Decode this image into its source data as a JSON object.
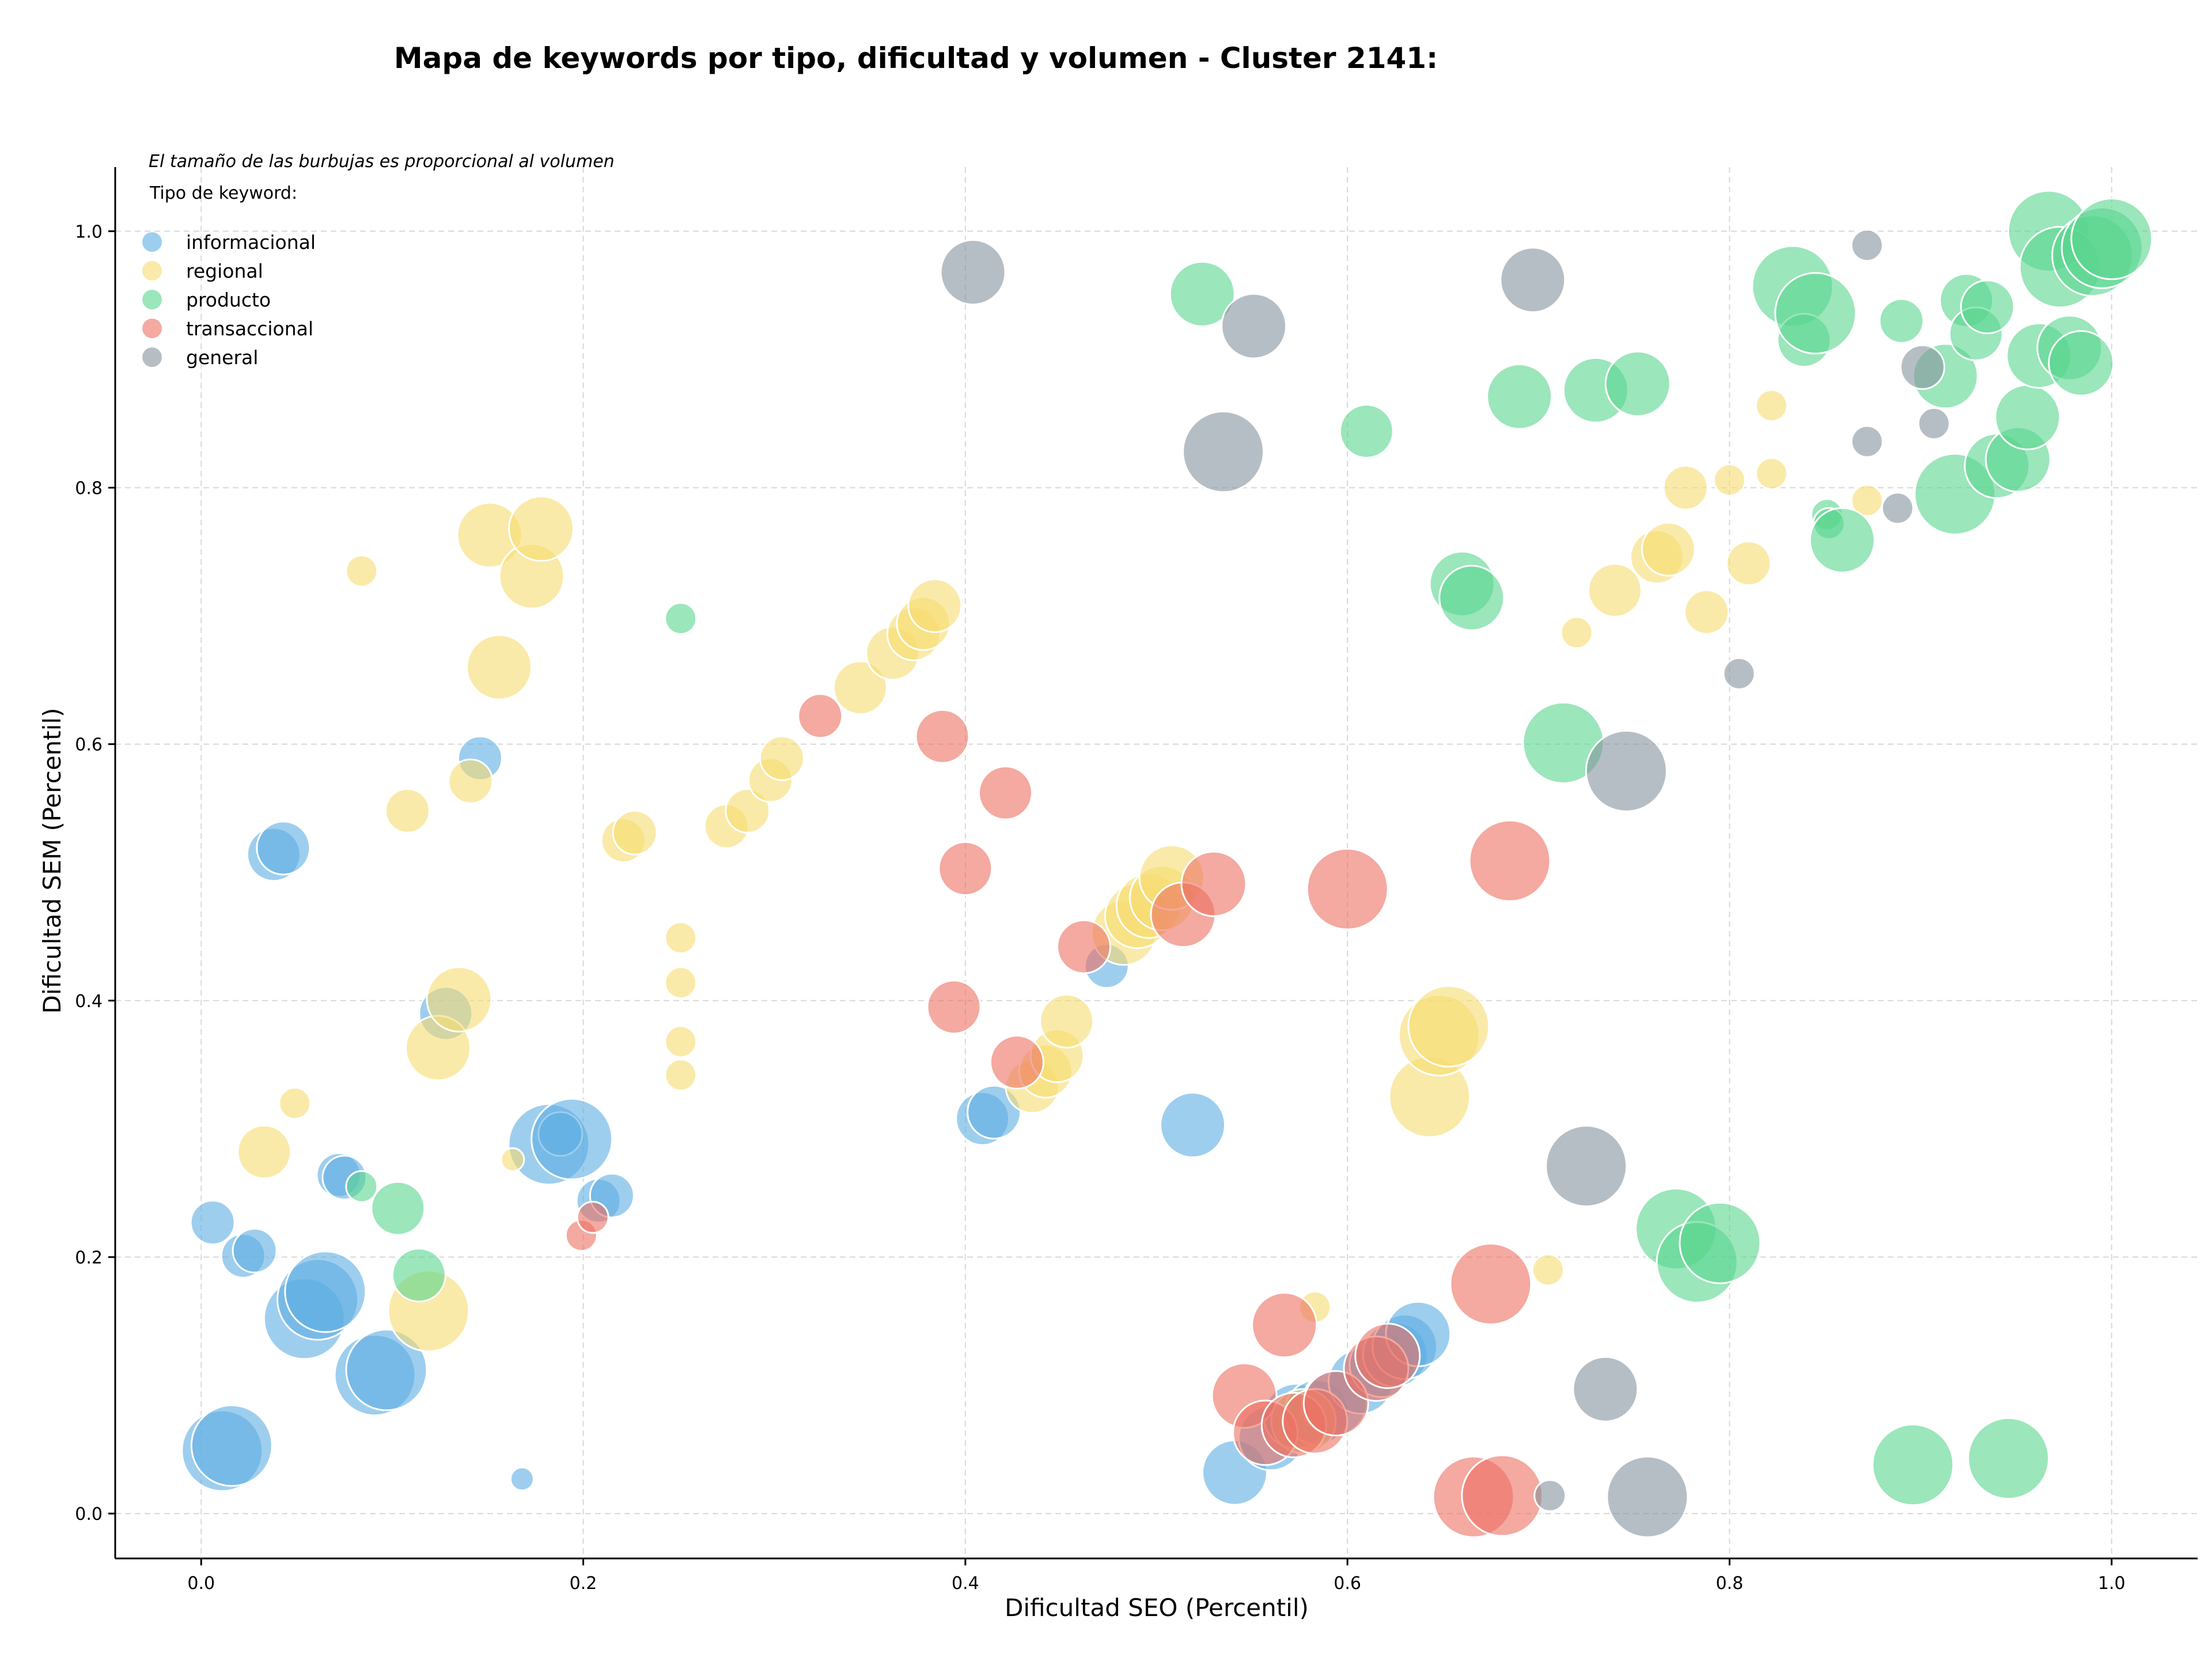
{
  "chart_data": {
    "type": "scatter",
    "title": "Mapa de keywords por tipo, dificultad y volumen - Cluster 2141:",
    "xlabel": "Dificultad SEO (Percentil)",
    "ylabel": "Dificultad SEM (Percentil)",
    "xlim": [
      -0.045,
      1.045
    ],
    "ylim": [
      -0.035,
      1.05
    ],
    "xticks": [
      "0.0",
      "0.2",
      "0.4",
      "0.6",
      "0.8",
      "1.0"
    ],
    "yticks": [
      "0.0",
      "0.2",
      "0.4",
      "0.6",
      "0.8",
      "1.0"
    ],
    "grid": true,
    "note": "El tamaño de las burbujas es proporcional al volumen",
    "legend": {
      "title": "Tipo de keyword:",
      "placement": "top-left",
      "entries": [
        "informacional",
        "regional",
        "producto",
        "transaccional",
        "general"
      ]
    },
    "series": [
      {
        "name": "informacional",
        "color": "#5DADE2",
        "points": [
          [
            0.006,
            0.227,
            3
          ],
          [
            0.022,
            0.201,
            3
          ],
          [
            0.028,
            0.205,
            3
          ],
          [
            0.038,
            0.514,
            4
          ],
          [
            0.043,
            0.519,
            4
          ],
          [
            0.011,
            0.049,
            6
          ],
          [
            0.016,
            0.053,
            6
          ],
          [
            0.054,
            0.152,
            6
          ],
          [
            0.061,
            0.167,
            6
          ],
          [
            0.065,
            0.173,
            6
          ],
          [
            0.072,
            0.264,
            3
          ],
          [
            0.075,
            0.262,
            3
          ],
          [
            0.091,
            0.108,
            6
          ],
          [
            0.097,
            0.112,
            6
          ],
          [
            0.128,
            0.39,
            4
          ],
          [
            0.146,
            0.589,
            3
          ],
          [
            0.168,
            0.027,
            1
          ],
          [
            0.182,
            0.288,
            6
          ],
          [
            0.188,
            0.296,
            3
          ],
          [
            0.194,
            0.292,
            6
          ],
          [
            0.208,
            0.244,
            3
          ],
          [
            0.215,
            0.248,
            3
          ],
          [
            0.409,
            0.308,
            4
          ],
          [
            0.415,
            0.313,
            4
          ],
          [
            0.474,
            0.427,
            3
          ],
          [
            0.519,
            0.303,
            5
          ],
          [
            0.541,
            0.032,
            5
          ],
          [
            0.56,
            0.059,
            5
          ],
          [
            0.573,
            0.076,
            5
          ],
          [
            0.584,
            0.079,
            5
          ],
          [
            0.593,
            0.086,
            5
          ],
          [
            0.607,
            0.103,
            5
          ],
          [
            0.618,
            0.116,
            5
          ],
          [
            0.625,
            0.124,
            5
          ],
          [
            0.63,
            0.13,
            5
          ],
          [
            0.637,
            0.14,
            5
          ]
        ]
      },
      {
        "name": "regional",
        "color": "#F7DC6F",
        "points": [
          [
            0.033,
            0.282,
            4
          ],
          [
            0.049,
            0.32,
            2
          ],
          [
            0.084,
            0.735,
            2
          ],
          [
            0.108,
            0.548,
            3
          ],
          [
            0.119,
            0.158,
            6
          ],
          [
            0.124,
            0.363,
            5
          ],
          [
            0.135,
            0.401,
            5
          ],
          [
            0.141,
            0.571,
            3
          ],
          [
            0.151,
            0.763,
            5
          ],
          [
            0.156,
            0.66,
            5
          ],
          [
            0.163,
            0.276,
            1
          ],
          [
            0.173,
            0.731,
            5
          ],
          [
            0.178,
            0.768,
            5
          ],
          [
            0.221,
            0.525,
            3
          ],
          [
            0.227,
            0.531,
            3
          ],
          [
            0.251,
            0.449,
            2
          ],
          [
            0.251,
            0.414,
            2
          ],
          [
            0.251,
            0.368,
            2
          ],
          [
            0.251,
            0.342,
            2
          ],
          [
            0.275,
            0.536,
            3
          ],
          [
            0.286,
            0.548,
            3
          ],
          [
            0.298,
            0.572,
            3
          ],
          [
            0.304,
            0.589,
            3
          ],
          [
            0.345,
            0.644,
            4
          ],
          [
            0.362,
            0.671,
            4
          ],
          [
            0.373,
            0.686,
            4
          ],
          [
            0.378,
            0.694,
            4
          ],
          [
            0.384,
            0.708,
            4
          ],
          [
            0.435,
            0.333,
            4
          ],
          [
            0.442,
            0.345,
            4
          ],
          [
            0.448,
            0.357,
            4
          ],
          [
            0.453,
            0.384,
            4
          ],
          [
            0.483,
            0.453,
            5
          ],
          [
            0.49,
            0.466,
            5
          ],
          [
            0.496,
            0.474,
            5
          ],
          [
            0.503,
            0.48,
            5
          ],
          [
            0.508,
            0.496,
            5
          ],
          [
            0.577,
            0.072,
            5
          ],
          [
            0.583,
            0.161,
            2
          ],
          [
            0.643,
            0.325,
            6
          ],
          [
            0.648,
            0.373,
            6
          ],
          [
            0.653,
            0.38,
            6
          ],
          [
            0.705,
            0.19,
            2
          ],
          [
            0.72,
            0.687,
            2
          ],
          [
            0.74,
            0.72,
            4
          ],
          [
            0.762,
            0.746,
            4
          ],
          [
            0.768,
            0.752,
            4
          ],
          [
            0.777,
            0.8,
            3
          ],
          [
            0.788,
            0.703,
            3
          ],
          [
            0.8,
            0.806,
            2
          ],
          [
            0.81,
            0.741,
            3
          ],
          [
            0.822,
            0.811,
            2
          ],
          [
            0.822,
            0.864,
            2
          ],
          [
            0.872,
            0.79,
            2
          ]
        ]
      },
      {
        "name": "producto",
        "color": "#58D68D",
        "points": [
          [
            0.084,
            0.255,
            2
          ],
          [
            0.103,
            0.238,
            4
          ],
          [
            0.114,
            0.186,
            4
          ],
          [
            0.251,
            0.698,
            2
          ],
          [
            0.524,
            0.951,
            5
          ],
          [
            0.61,
            0.844,
            4
          ],
          [
            0.66,
            0.725,
            5
          ],
          [
            0.665,
            0.714,
            5
          ],
          [
            0.69,
            0.871,
            5
          ],
          [
            0.713,
            0.601,
            6
          ],
          [
            0.73,
            0.876,
            5
          ],
          [
            0.752,
            0.881,
            5
          ],
          [
            0.772,
            0.222,
            6
          ],
          [
            0.783,
            0.196,
            6
          ],
          [
            0.795,
            0.211,
            6
          ],
          [
            0.833,
            0.957,
            6
          ],
          [
            0.839,
            0.915,
            4
          ],
          [
            0.845,
            0.936,
            6
          ],
          [
            0.851,
            0.779,
            2
          ],
          [
            0.852,
            0.772,
            2
          ],
          [
            0.859,
            0.759,
            5
          ],
          [
            0.89,
            0.93,
            3
          ],
          [
            0.896,
            0.038,
            6
          ],
          [
            0.913,
            0.887,
            5
          ],
          [
            0.918,
            0.795,
            6
          ],
          [
            0.924,
            0.946,
            4
          ],
          [
            0.929,
            0.92,
            4
          ],
          [
            0.935,
            0.941,
            4
          ],
          [
            0.94,
            0.817,
            5
          ],
          [
            0.946,
            0.043,
            6
          ],
          [
            0.951,
            0.822,
            5
          ],
          [
            0.956,
            0.855,
            5
          ],
          [
            0.962,
            0.903,
            5
          ],
          [
            0.967,
            1.0,
            6
          ],
          [
            0.973,
            0.972,
            6
          ],
          [
            0.978,
            0.909,
            5
          ],
          [
            0.984,
            0.897,
            5
          ],
          [
            0.99,
            0.981,
            6
          ],
          [
            0.995,
            0.987,
            6
          ],
          [
            1.0,
            0.994,
            6
          ]
        ]
      },
      {
        "name": "transaccional",
        "color": "#EC7063",
        "points": [
          [
            0.199,
            0.217,
            2
          ],
          [
            0.205,
            0.231,
            2
          ],
          [
            0.324,
            0.622,
            3
          ],
          [
            0.388,
            0.606,
            4
          ],
          [
            0.394,
            0.395,
            4
          ],
          [
            0.4,
            0.503,
            4
          ],
          [
            0.421,
            0.562,
            4
          ],
          [
            0.427,
            0.352,
            4
          ],
          [
            0.462,
            0.442,
            4
          ],
          [
            0.514,
            0.467,
            5
          ],
          [
            0.53,
            0.491,
            5
          ],
          [
            0.546,
            0.092,
            5
          ],
          [
            0.557,
            0.063,
            5
          ],
          [
            0.567,
            0.147,
            5
          ],
          [
            0.572,
            0.069,
            5
          ],
          [
            0.583,
            0.072,
            5
          ],
          [
            0.594,
            0.086,
            5
          ],
          [
            0.6,
            0.487,
            6
          ],
          [
            0.615,
            0.113,
            5
          ],
          [
            0.621,
            0.123,
            5
          ],
          [
            0.666,
            0.013,
            6
          ],
          [
            0.675,
            0.179,
            6
          ],
          [
            0.681,
            0.014,
            6
          ],
          [
            0.685,
            0.509,
            6
          ]
        ]
      },
      {
        "name": "general",
        "color": "#85929E",
        "points": [
          [
            0.404,
            0.968,
            5
          ],
          [
            0.535,
            0.828,
            6
          ],
          [
            0.551,
            0.926,
            5
          ],
          [
            0.697,
            0.962,
            5
          ],
          [
            0.706,
            0.014,
            2
          ],
          [
            0.725,
            0.271,
            6
          ],
          [
            0.735,
            0.097,
            5
          ],
          [
            0.746,
            0.579,
            6
          ],
          [
            0.757,
            0.013,
            6
          ],
          [
            0.805,
            0.655,
            2
          ],
          [
            0.872,
            0.836,
            2
          ],
          [
            0.872,
            0.989,
            2
          ],
          [
            0.888,
            0.784,
            2
          ],
          [
            0.901,
            0.894,
            3
          ],
          [
            0.907,
            0.85,
            2
          ]
        ]
      }
    ]
  }
}
